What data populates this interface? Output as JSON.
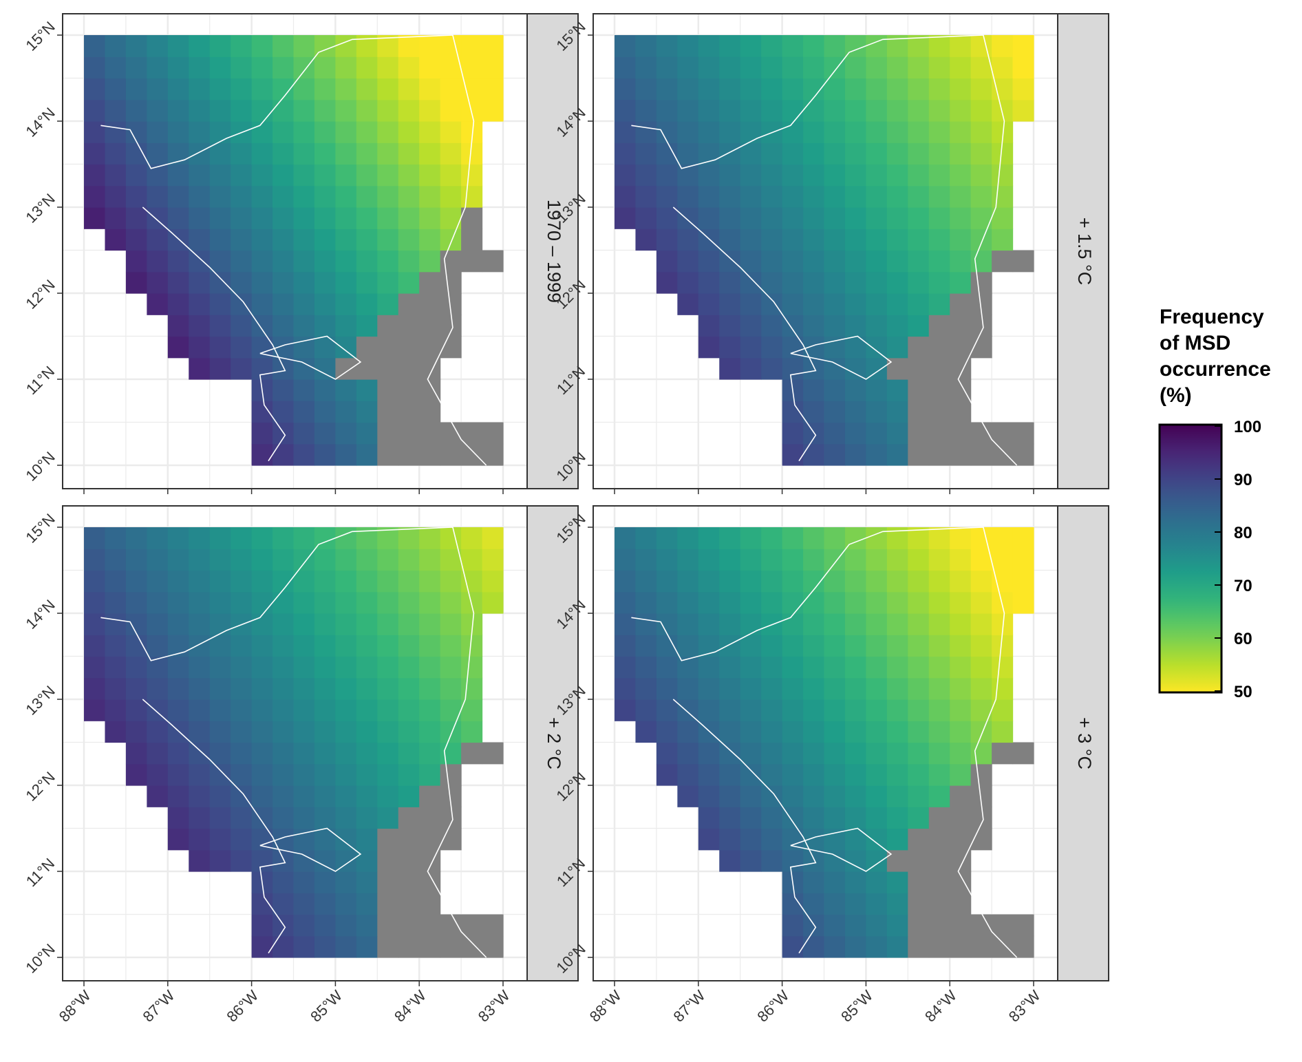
{
  "chart_data": {
    "type": "heatmap",
    "description_units": "grid cell value = frequency of MSD occurrence (%); null = no data (white); 'land' = grey (not evaluated)",
    "x_tick_labels": [
      "88°W",
      "87°W",
      "86°W",
      "85°W",
      "84°W",
      "83°W"
    ],
    "y_tick_labels": [
      "10°N",
      "11°N",
      "12°N",
      "13°N",
      "14°N",
      "15°N"
    ],
    "x_range": [
      -88,
      -83
    ],
    "y_range": [
      10,
      15
    ],
    "grid_resolution_deg": 0.25,
    "legend": {
      "title_lines": [
        "Frequency",
        "of MSD",
        "occurrence",
        "(%)"
      ],
      "ticks": [
        "100",
        "90",
        "80",
        "70",
        "60",
        "50"
      ],
      "range": [
        50,
        100
      ],
      "palette": "viridis (reversed: 100 = dark purple, 50 = yellow)"
    },
    "colors": {
      "no_msd_cell": "#808080",
      "coastline": "#ffffff",
      "grid": "#ebebeb",
      "strip": "#d9d9d9"
    },
    "panels": [
      {
        "label": "1970 – 1999",
        "rows": [
          "ppppppppppppppp",
          "ppppppppppppppp",
          "ppppppppppppppp",
          "ppppppppppppppp",
          "pppppppppppppppLLLLLLLLLL",
          "..."
        ]
      },
      {
        "label": "+ 1.5 °C"
      },
      {
        "label": "+ 2 °C"
      },
      {
        "label": "+ 3 °C"
      }
    ]
  }
}
